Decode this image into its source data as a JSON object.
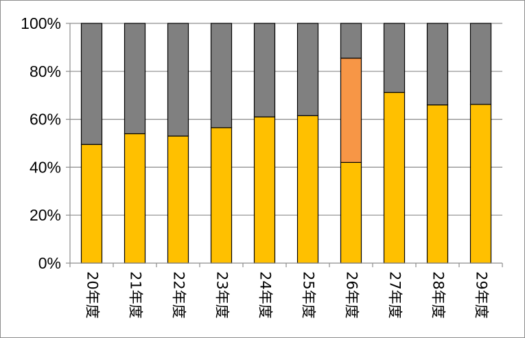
{
  "chart_data": {
    "type": "bar",
    "stacked": true,
    "percent": true,
    "categories": [
      "20年度",
      "21年度",
      "22年度",
      "23年度",
      "24年度",
      "25年度",
      "26年度",
      "27年度",
      "28年度",
      "29年度"
    ],
    "series": [
      {
        "color": "#ffc000",
        "values": [
          49.5,
          54,
          53,
          56.5,
          61,
          61.5,
          42,
          71.2,
          66,
          66.2
        ]
      },
      {
        "color": "#f79646",
        "values": [
          0,
          0,
          0,
          0,
          0,
          0,
          43.5,
          0,
          0,
          0
        ]
      },
      {
        "color": "#808080",
        "values": [
          50.5,
          46,
          47,
          43.5,
          39,
          38.5,
          14.5,
          28.8,
          34,
          33.8
        ]
      }
    ],
    "y_ticks": [
      "0%",
      "20%",
      "40%",
      "60%",
      "80%",
      "100%"
    ],
    "ylim": [
      0,
      100
    ],
    "grid": true,
    "legend": "none"
  }
}
